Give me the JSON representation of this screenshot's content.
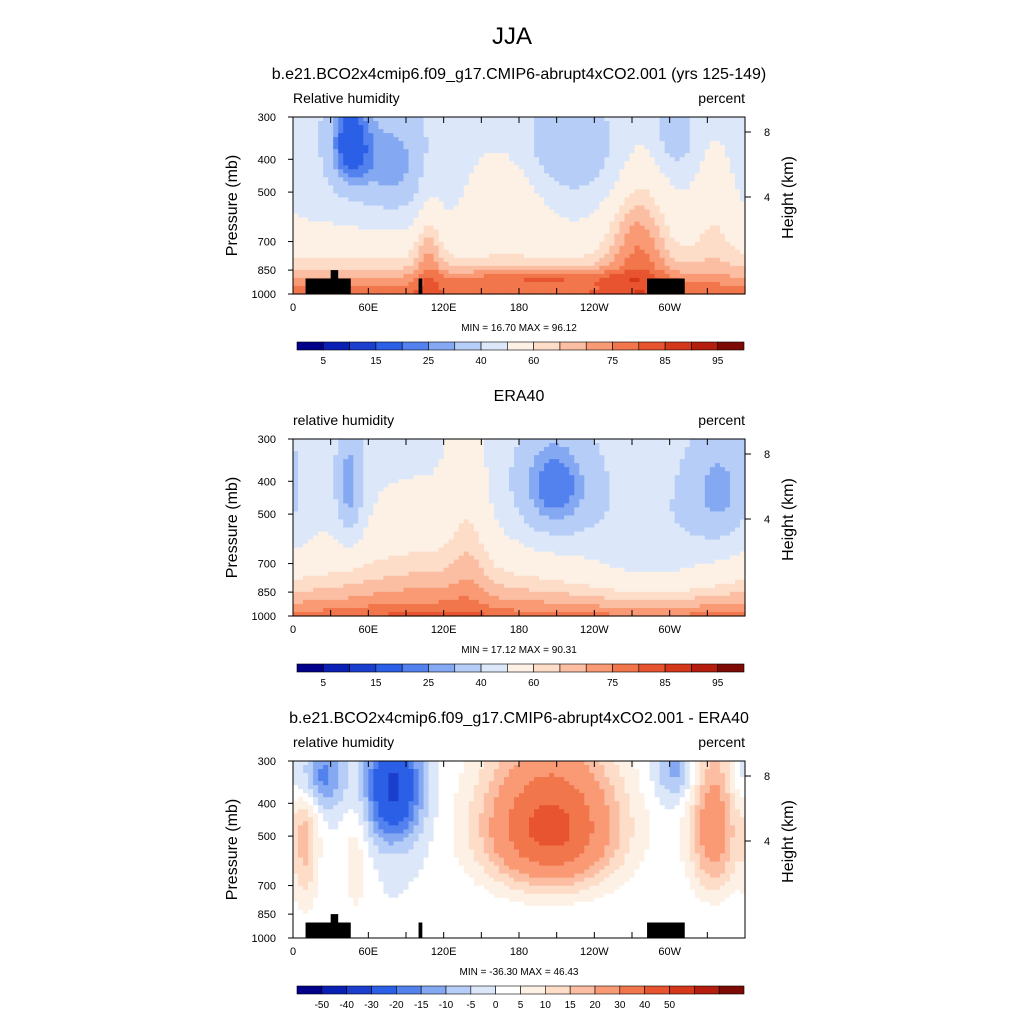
{
  "page": {
    "title": "JJA"
  },
  "colormaps": {
    "rh": [
      "#00008b",
      "#0a1fb4",
      "#1a3fcf",
      "#2a5fe6",
      "#5382ef",
      "#85a8f2",
      "#b6cef7",
      "#dce8fa",
      "#fdf1e6",
      "#fddcc8",
      "#fbbea3",
      "#f99a75",
      "#f2764b",
      "#e8542f",
      "#d5371b",
      "#b51e0f",
      "#7d0a04"
    ],
    "diff": [
      "#00008b",
      "#0a1fb4",
      "#1a3fcf",
      "#2a5fe6",
      "#5382ef",
      "#85a8f2",
      "#b6cef7",
      "#dce8fa",
      "#ffffff",
      "#fdf1e6",
      "#fddcc8",
      "#fbbea3",
      "#f99a75",
      "#f2764b",
      "#e8542f",
      "#d5371b",
      "#b51e0f",
      "#7d0a04"
    ]
  },
  "chart_data": [
    {
      "type": "heatmap",
      "title": "b.e21.BCO2x4cmip6.f09_g17.CMIP6-abrupt4xCO2.001 (yrs 125-149)",
      "left_label": "Relative humidity",
      "right_label": "percent",
      "ylabel": "Pressure (mb)",
      "ylabel_right": "Height (km)",
      "xticks": [
        "0",
        "60E",
        "120E",
        "180",
        "120W",
        "60W"
      ],
      "xlim": [
        0,
        360
      ],
      "yticks": [
        "300",
        "400",
        "500",
        "700",
        "850",
        "1000"
      ],
      "ylim": [
        1000,
        300
      ],
      "height_ticks": [
        "8",
        "4"
      ],
      "stats": "MIN = 16.70  MAX = 96.12",
      "colorbar": {
        "levels": [
          5,
          10,
          15,
          20,
          25,
          30,
          40,
          50,
          60,
          65,
          70,
          75,
          80,
          85,
          90,
          95
        ],
        "labels": [
          "5",
          "15",
          "25",
          "40",
          "60",
          "75",
          "85",
          "95"
        ],
        "colormap": "rh"
      },
      "orography": [
        [
          10,
          850
        ],
        [
          35,
          900
        ],
        [
          100,
          850
        ],
        [
          250,
          850
        ]
      ]
    },
    {
      "type": "heatmap",
      "title": "ERA40",
      "left_label": "relative humidity",
      "right_label": "percent",
      "ylabel": "Pressure (mb)",
      "ylabel_right": "Height (km)",
      "xticks": [
        "0",
        "60E",
        "120E",
        "180",
        "120W",
        "60W"
      ],
      "xlim": [
        0,
        360
      ],
      "yticks": [
        "300",
        "400",
        "500",
        "700",
        "850",
        "1000"
      ],
      "ylim": [
        1000,
        300
      ],
      "height_ticks": [
        "8",
        "4"
      ],
      "stats": "MIN = 17.12  MAX = 90.31",
      "colorbar": {
        "levels": [
          5,
          10,
          15,
          20,
          25,
          30,
          40,
          50,
          60,
          65,
          70,
          75,
          80,
          85,
          90,
          95
        ],
        "labels": [
          "5",
          "15",
          "25",
          "40",
          "60",
          "75",
          "85",
          "95"
        ],
        "colormap": "rh"
      }
    },
    {
      "type": "heatmap",
      "title": "b.e21.BCO2x4cmip6.f09_g17.CMIP6-abrupt4xCO2.001 - ERA40",
      "left_label": "relative humidity",
      "right_label": "percent",
      "ylabel": "Pressure (mb)",
      "ylabel_right": "Height (km)",
      "xticks": [
        "0",
        "60E",
        "120E",
        "180",
        "120W",
        "60W"
      ],
      "xlim": [
        0,
        360
      ],
      "yticks": [
        "300",
        "400",
        "500",
        "700",
        "850",
        "1000"
      ],
      "ylim": [
        1000,
        300
      ],
      "height_ticks": [
        "8",
        "4"
      ],
      "stats": "MIN = -36.30  MAX = 46.43",
      "colorbar": {
        "levels": [
          -50,
          -40,
          -30,
          -20,
          -15,
          -10,
          -5,
          0,
          5,
          10,
          15,
          20,
          30,
          40,
          50
        ],
        "labels": [
          "-50",
          "-40",
          "-30",
          "-20",
          "-15",
          "-10",
          "-5",
          "0",
          "5",
          "10",
          "15",
          "20",
          "30",
          "40",
          "50"
        ],
        "colormap": "diff"
      },
      "orography": [
        [
          10,
          850
        ],
        [
          35,
          900
        ],
        [
          100,
          850
        ],
        [
          250,
          850
        ]
      ]
    }
  ]
}
